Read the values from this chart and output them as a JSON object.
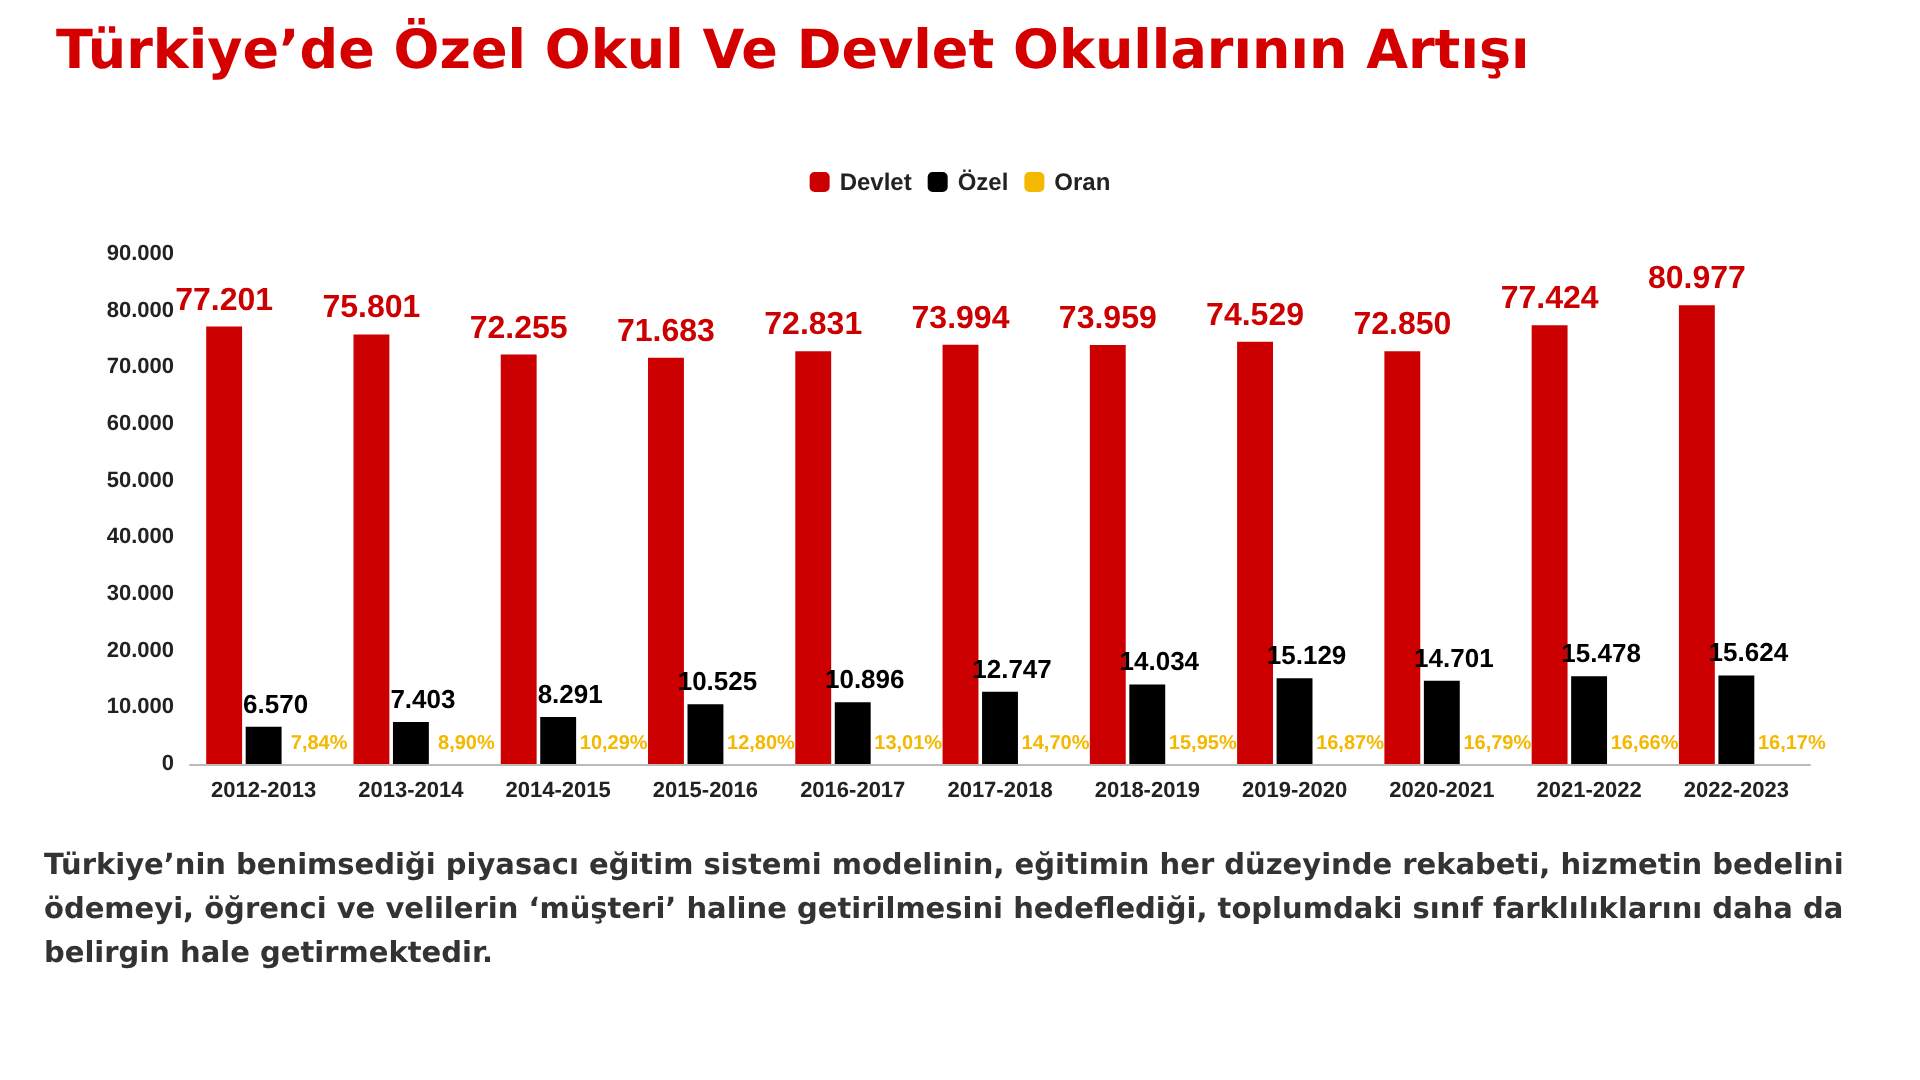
{
  "chart_data": {
    "type": "bar",
    "title": "Türkiye’de Özel Okul Ve Devlet Okullarının Artışı",
    "categories": [
      "2012-2013",
      "2013-2014",
      "2014-2015",
      "2015-2016",
      "2016-2017",
      "2017-2018",
      "2018-2019",
      "2019-2020",
      "2020-2021",
      "2021-2022",
      "2022-2023"
    ],
    "series": [
      {
        "name": "Devlet",
        "color": "#cc0000",
        "values": [
          77201,
          75801,
          72255,
          71683,
          72831,
          73994,
          73959,
          74529,
          72850,
          77424,
          80977
        ],
        "value_labels": [
          "77.201",
          "75.801",
          "72.255",
          "71.683",
          "72.831",
          "73.994",
          "73.959",
          "74.529",
          "72.850",
          "77.424",
          "80.977"
        ]
      },
      {
        "name": "Özel",
        "color": "#000000",
        "values": [
          6570,
          7403,
          8291,
          10525,
          10896,
          12747,
          14034,
          15129,
          14701,
          15478,
          15624
        ],
        "value_labels": [
          "6.570",
          "7.403",
          "8.291",
          "10.525",
          "10.896",
          "12.747",
          "14.034",
          "15.129",
          "14.701",
          "15.478",
          "15.624"
        ]
      },
      {
        "name": "Oran",
        "color": "#f5b800",
        "values": [
          7.84,
          8.9,
          10.29,
          12.8,
          13.01,
          14.7,
          15.95,
          16.87,
          16.79,
          16.66,
          16.17
        ],
        "value_labels": [
          "7,84%",
          "8,90%",
          "10,29%",
          "12,80%",
          "13,01%",
          "14,70%",
          "15,95%",
          "16,87%",
          "16,79%",
          "16,66%",
          "16,17%"
        ]
      }
    ],
    "ylim": [
      0,
      90000
    ],
    "yticks": [
      {
        "value": 0,
        "label": "0"
      },
      {
        "value": 10000,
        "label": "10.000"
      },
      {
        "value": 20000,
        "label": "20.000"
      },
      {
        "value": 30000,
        "label": "30.000"
      },
      {
        "value": 40000,
        "label": "40.000"
      },
      {
        "value": 50000,
        "label": "50.000"
      },
      {
        "value": 60000,
        "label": "60.000"
      },
      {
        "value": 70000,
        "label": "70.000"
      },
      {
        "value": 80000,
        "label": "80.000"
      },
      {
        "value": 90000,
        "label": "90.000"
      }
    ],
    "grid": false,
    "legend": "top",
    "annotations": [
      "Türkiye’nin benimsediği piyasacı eğitim sistemi modelinin, eğitimin her düzeyinde rekabeti, hizmetin bedelini ödemeyi, öğrenci ve velilerin ‘müşteri’ haline getirilmesini hedeflediği, toplumdaki sınıf farklılıklarını daha da belirgin hale getirmektedir."
    ]
  }
}
